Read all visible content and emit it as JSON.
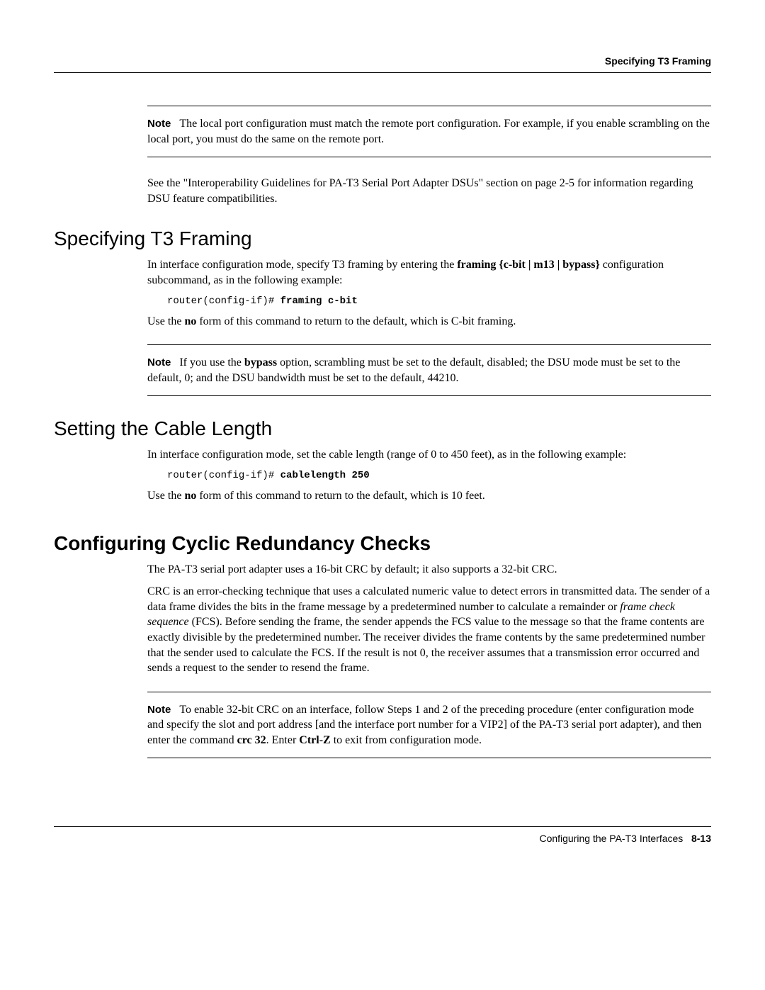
{
  "running_head": "Specifying T3 Framing",
  "note1": {
    "label": "Note",
    "text_a": "The local port configuration must match the remote port configuration. For example, if you enable scrambling on the local port, you must do the same on the remote port."
  },
  "para_interop": "See the \"Interoperability Guidelines for PA-T3 Serial Port Adapter DSUs\" section on page 2-5 for information regarding DSU feature compatibilities.",
  "sec_framing": {
    "title": "Specifying T3 Framing",
    "intro_pre": "In interface configuration mode, specify T3 framing by entering the ",
    "intro_cmd": "framing {c-bit | m13 | bypass}",
    "intro_post": " configuration subcommand, as in the following example:",
    "code_prompt": "router(config-if)# ",
    "code_cmd": "framing c-bit",
    "use_no_pre": "Use the ",
    "use_no_bold": "no",
    "use_no_post": " form of this command to return to the default, which is C-bit framing.",
    "note": {
      "label": "Note",
      "pre": "If you use the ",
      "bold1": "bypass",
      "post": " option, scrambling must be set to the default, disabled; the DSU mode must be set to the default, 0; and the DSU bandwidth must be set to the default, 44210."
    }
  },
  "sec_cable": {
    "title": "Setting the Cable Length",
    "intro": "In interface configuration mode, set the cable length (range of 0 to 450 feet), as in the following example:",
    "code_prompt": "router(config-if)# ",
    "code_cmd": "cablelength 250",
    "use_no_pre": "Use the ",
    "use_no_bold": "no",
    "use_no_post": " form of this command to return to the default, which is 10 feet."
  },
  "sec_crc": {
    "title": "Configuring Cyclic Redundancy Checks",
    "p1": "The PA-T3 serial port adapter uses a 16-bit CRC by default; it also supports a 32-bit CRC.",
    "p2_a": "CRC is an error-checking technique that uses a calculated numeric value to detect errors in transmitted data. The sender of a data frame divides the bits in the frame message by a predetermined number to calculate a remainder or ",
    "p2_i": "frame check sequence",
    "p2_b": " (FCS). Before sending the frame, the sender appends the FCS value to the message so that the frame contents are exactly divisible by the predetermined number. The receiver divides the frame contents by the same predetermined number that the sender used to calculate the FCS. If the result is not 0, the receiver assumes that a transmission error occurred and sends a request to the sender to resend the frame.",
    "note": {
      "label": "Note",
      "a": "To enable 32-bit CRC on an interface, follow Steps 1 and 2 of the preceding procedure (enter configuration mode and specify the slot and port address [and the interface port number for a VIP2] of the PA-T3 serial port adapter), and then enter the command ",
      "cmd": "crc 32",
      "b": ". Enter ",
      "key": "Ctrl-Z",
      "c": " to exit from configuration mode."
    }
  },
  "footer": {
    "text": "Configuring the PA-T3 Interfaces",
    "page": "8-13"
  }
}
